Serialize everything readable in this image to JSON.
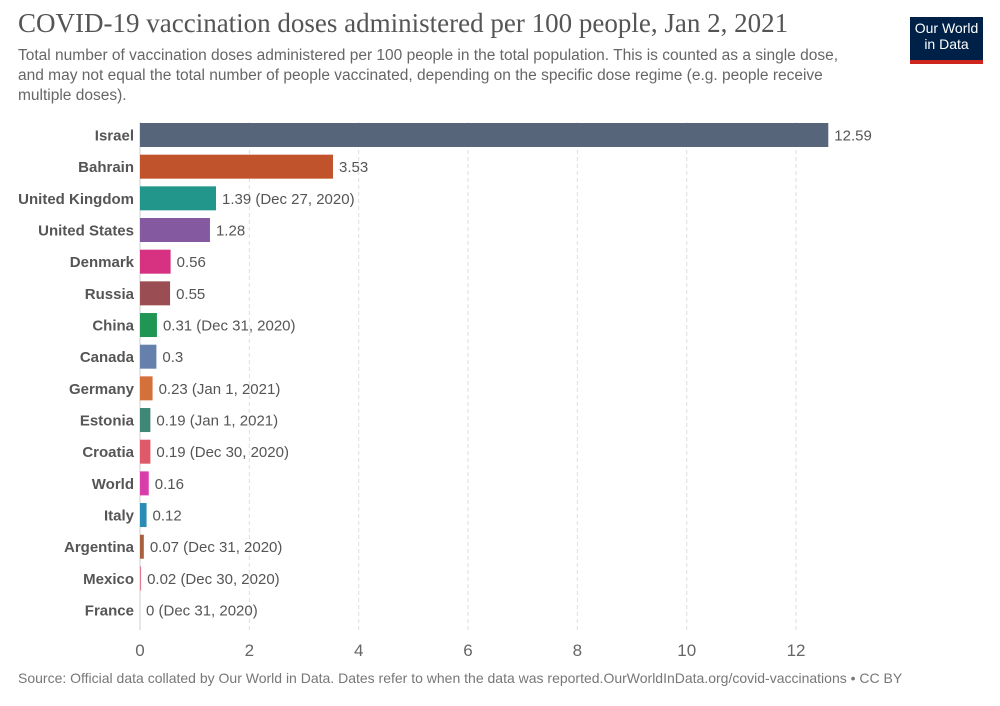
{
  "header": {
    "title": "COVID-19 vaccination doses administered per 100 people, Jan 2, 2021",
    "subtitle": "Total number of vaccination doses administered per 100 people in the total population. This is counted as a single dose, and may not equal the total number of people vaccinated, depending on the specific dose regime (e.g. people receive multiple doses).",
    "logo_line1": "Our World",
    "logo_line2": "in Data"
  },
  "footer": {
    "source": "Source: Official data collated by Our World in Data. Dates refer to when the data was reported.OurWorldInData.org/covid-vaccinations • CC BY"
  },
  "chart_data": {
    "type": "bar",
    "orientation": "horizontal",
    "title": "COVID-19 vaccination doses administered per 100 people, Jan 2, 2021",
    "xlim": [
      0,
      12.59
    ],
    "xticks": [
      0,
      2,
      4,
      6,
      8,
      10,
      12
    ],
    "grid": "vertical dashed",
    "categories": [
      "Israel",
      "Bahrain",
      "United Kingdom",
      "United States",
      "Denmark",
      "Russia",
      "China",
      "Canada",
      "Germany",
      "Estonia",
      "Croatia",
      "World",
      "Italy",
      "Argentina",
      "Mexico",
      "France"
    ],
    "values": [
      12.59,
      3.53,
      1.39,
      1.28,
      0.56,
      0.55,
      0.31,
      0.3,
      0.23,
      0.19,
      0.19,
      0.16,
      0.12,
      0.07,
      0.02,
      0
    ],
    "labels": [
      "12.59",
      "3.53",
      "1.39 (Dec 27, 2020)",
      "1.28",
      "0.56",
      "0.55",
      "0.31 (Dec 31, 2020)",
      "0.3",
      "0.23 (Jan 1, 2021)",
      "0.19 (Jan 1, 2021)",
      "0.19 (Dec 30, 2020)",
      "0.16",
      "0.12",
      "0.07 (Dec 31, 2020)",
      "0.02 (Dec 30, 2020)",
      "0 (Dec 31, 2020)"
    ],
    "colors": [
      "#56657a",
      "#c0532c",
      "#22968b",
      "#8459a0",
      "#d73182",
      "#9a4d52",
      "#219654",
      "#6680ac",
      "#d4703a",
      "#3f8777",
      "#df5a69",
      "#d73eaa",
      "#2a8cb5",
      "#a9603f",
      "#e37a93",
      "#999999"
    ]
  }
}
